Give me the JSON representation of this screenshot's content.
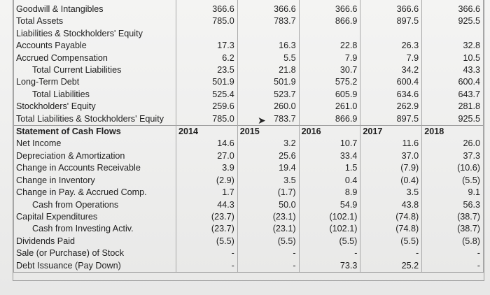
{
  "balance_sheet": [
    {
      "label": "Goodwill & Intangibles",
      "values": [
        "366.6",
        "366.6",
        "366.6",
        "366.6",
        "366.6"
      ]
    },
    {
      "label": "Total Assets",
      "values": [
        "785.0",
        "783.7",
        "866.9",
        "897.5",
        "925.5"
      ]
    },
    {
      "label": "Liabilities & Stockholders' Equity",
      "values": [
        "",
        "",
        "",
        "",
        ""
      ]
    },
    {
      "label": "Accounts Payable",
      "values": [
        "17.3",
        "16.3",
        "22.8",
        "26.3",
        "32.8"
      ]
    },
    {
      "label": "Accrued Compensation",
      "values": [
        "6.2",
        "5.5",
        "7.9",
        "7.9",
        "10.5"
      ]
    },
    {
      "label": "Total Current Liabilities",
      "values": [
        "23.5",
        "21.8",
        "30.7",
        "34.2",
        "43.3"
      ],
      "indent": true
    },
    {
      "label": "Long-Term Debt",
      "values": [
        "501.9",
        "501.9",
        "575.2",
        "600.4",
        "600.4"
      ]
    },
    {
      "label": "Total Liabilities",
      "values": [
        "525.4",
        "523.7",
        "605.9",
        "634.6",
        "643.7"
      ],
      "indent": true
    },
    {
      "label": "Stockholders' Equity",
      "values": [
        "259.6",
        "260.0",
        "261.0",
        "262.9",
        "281.8"
      ]
    },
    {
      "label": "Total Liabilities & Stockholders' Equity",
      "values": [
        "785.0",
        "783.7",
        "866.9",
        "897.5",
        "925.5"
      ]
    }
  ],
  "cash_flow": {
    "title": "Statement of Cash Flows",
    "years": [
      "2014",
      "2015",
      "2016",
      "2017",
      "2018"
    ],
    "rows": [
      {
        "label": "Net Income",
        "values": [
          "14.6",
          "3.2",
          "10.7",
          "11.6",
          "26.0"
        ]
      },
      {
        "label": "Depreciation & Amortization",
        "values": [
          "27.0",
          "25.6",
          "33.4",
          "37.0",
          "37.3"
        ]
      },
      {
        "label": "Change in Accounts Receivable",
        "values": [
          "3.9",
          "19.4",
          "1.5",
          "(7.9)",
          "(10.6)"
        ]
      },
      {
        "label": "Change in Inventory",
        "values": [
          "(2.9)",
          "3.5",
          "0.4",
          "(0.4)",
          "(5.5)"
        ]
      },
      {
        "label": "Change in Pay. & Accrued Comp.",
        "values": [
          "1.7",
          "(1.7)",
          "8.9",
          "3.5",
          "9.1"
        ]
      },
      {
        "label": "Cash from Operations",
        "values": [
          "44.3",
          "50.0",
          "54.9",
          "43.8",
          "56.3"
        ],
        "indent": true
      },
      {
        "label": "Capital Expenditures",
        "values": [
          "(23.7)",
          "(23.1)",
          "(102.1)",
          "(74.8)",
          "(38.7)"
        ]
      },
      {
        "label": "Cash from Investing Activ.",
        "values": [
          "(23.7)",
          "(23.1)",
          "(102.1)",
          "(74.8)",
          "(38.7)"
        ],
        "indent": true
      },
      {
        "label": "Dividends Paid",
        "values": [
          "(5.5)",
          "(5.5)",
          "(5.5)",
          "(5.5)",
          "(5.8)"
        ]
      },
      {
        "label": "Sale (or Purchase) of Stock",
        "values": [
          "-",
          "-",
          "-",
          "-",
          "-"
        ]
      },
      {
        "label": "Debt Issuance (Pay Down)",
        "values": [
          "-",
          "-",
          "73.3",
          "25.2",
          "-"
        ]
      }
    ]
  }
}
